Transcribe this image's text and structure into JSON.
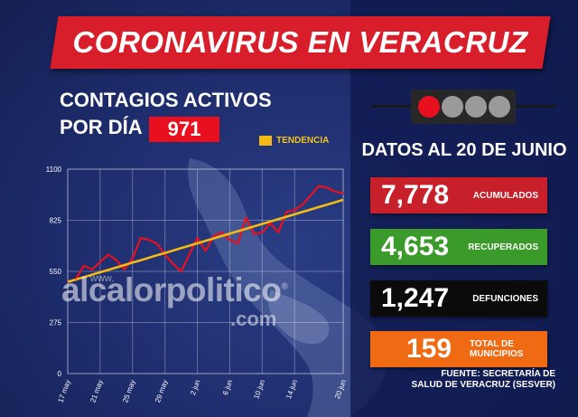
{
  "banner": {
    "title": "CORONAVIRUS EN VERACRUZ"
  },
  "subtitle": {
    "line1": "CONTAGIOS ACTIVOS",
    "line2": "POR DÍA",
    "active_value": "971"
  },
  "legend": {
    "label": "TENDENCIA",
    "color": "#f5b913"
  },
  "watermark": {
    "prefix": "www.",
    "main": "alcalorpolitico",
    "suffix": ".com",
    "registered": "®"
  },
  "traffic_light": {
    "icon": "traffic-light-icon",
    "lights": [
      "#e8101e",
      "#9a9a9a",
      "#9a9a9a",
      "#9a9a9a"
    ]
  },
  "date_label": "DATOS AL 20 DE JUNIO",
  "stats": [
    {
      "value": "7,778",
      "label": "ACUMULADOS",
      "color": "#c8202a"
    },
    {
      "value": "4,653",
      "label": "RECUPERADOS",
      "color": "#3a9a2a"
    },
    {
      "value": "1,247",
      "label": "DEFUNCIONES",
      "color": "#0b0b0b"
    },
    {
      "value": "159",
      "label": "TOTAL DE MUNICIPIOS",
      "color": "#ef6a13"
    }
  ],
  "source": {
    "line1": "FUENTE: SECRETARÍA DE",
    "line2": "SALUD DE VERACRUZ (SESVER)"
  },
  "chart_data": {
    "type": "line",
    "title": "CONTAGIOS ACTIVOS POR DÍA",
    "xlabel": "",
    "ylabel": "",
    "ylim": [
      0,
      1100
    ],
    "yticks": [
      0,
      275,
      550,
      825,
      1100
    ],
    "x_tick_labels": [
      "17 may",
      "21 may",
      "25 may",
      "29 may",
      "2 jun",
      "6 jun",
      "10 jun",
      "14 jun",
      "20 jun"
    ],
    "x_tick_index": [
      0,
      4,
      8,
      12,
      16,
      20,
      24,
      28,
      34
    ],
    "grid": true,
    "legend_placement": "top-right",
    "series": [
      {
        "name": "",
        "color": "#e8101e",
        "values": [
          490,
          510,
          580,
          560,
          600,
          640,
          610,
          560,
          620,
          730,
          720,
          700,
          640,
          590,
          550,
          640,
          730,
          660,
          740,
          760,
          720,
          700,
          840,
          750,
          760,
          810,
          760,
          870,
          880,
          910,
          960,
          1010,
          1000,
          980,
          971
        ]
      },
      {
        "name": "TENDENCIA",
        "color": "#f5b913",
        "values": [
          493,
          506,
          519,
          532,
          545,
          558,
          571,
          584,
          597,
          610,
          623,
          636,
          649,
          662,
          675,
          688,
          701,
          714,
          727,
          740,
          753,
          766,
          779,
          792,
          805,
          818,
          831,
          844,
          857,
          870,
          883,
          896,
          909,
          922,
          935
        ]
      }
    ]
  }
}
